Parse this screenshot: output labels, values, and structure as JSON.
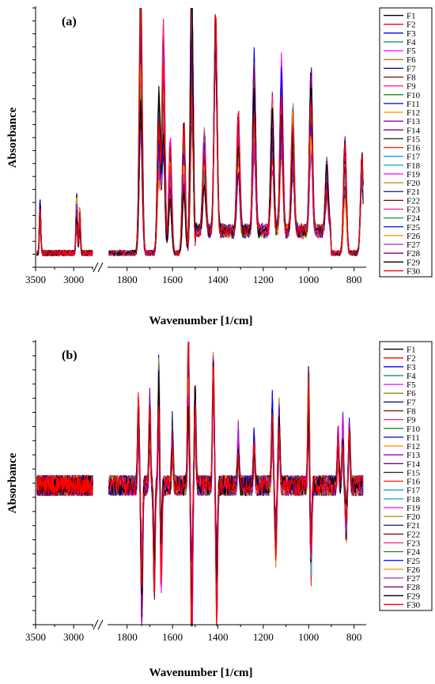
{
  "chart_data": [
    {
      "type": "line",
      "panel_label": "(a)",
      "xlabel": "Wavenumber [1/cm]",
      "ylabel": "Absorbance",
      "xlim": [
        3500,
        750
      ],
      "x_axis_break": [
        2700,
        1900
      ],
      "x_ticks": [
        3500,
        3000,
        1800,
        1600,
        1400,
        1200,
        1000,
        800
      ],
      "y_tick_labels": "none",
      "legend_position": "right",
      "peaks": [
        {
          "x": 3440,
          "h": 0.18
        },
        {
          "x": 2960,
          "h": 0.2
        },
        {
          "x": 2920,
          "h": 0.16
        },
        {
          "x": 1740,
          "h": 0.93
        },
        {
          "x": 1660,
          "h": 0.56
        },
        {
          "x": 1640,
          "h": 0.8
        },
        {
          "x": 1610,
          "h": 0.4
        },
        {
          "x": 1550,
          "h": 0.45
        },
        {
          "x": 1515,
          "h": 0.98
        },
        {
          "x": 1460,
          "h": 0.36
        },
        {
          "x": 1410,
          "h": 0.82
        },
        {
          "x": 1310,
          "h": 0.42
        },
        {
          "x": 1240,
          "h": 0.62
        },
        {
          "x": 1160,
          "h": 0.47
        },
        {
          "x": 1120,
          "h": 0.58
        },
        {
          "x": 1070,
          "h": 0.44
        },
        {
          "x": 990,
          "h": 0.55
        },
        {
          "x": 920,
          "h": 0.25
        },
        {
          "x": 840,
          "h": 0.4
        },
        {
          "x": 765,
          "h": 0.35
        }
      ]
    },
    {
      "type": "line",
      "panel_label": "(b)",
      "xlabel": "Wavenumber [1/cm]",
      "ylabel": "Absorbance",
      "xlim": [
        3500,
        750
      ],
      "x_axis_break": [
        2700,
        1900
      ],
      "x_ticks": [
        3500,
        3000,
        1800,
        1600,
        1400,
        1200,
        1000,
        800
      ],
      "y_tick_labels": "none",
      "legend_position": "right",
      "peaks": [
        {
          "x": 1750,
          "h": 0.6
        },
        {
          "x": 1735,
          "h": -0.95
        },
        {
          "x": 1700,
          "h": 0.55
        },
        {
          "x": 1680,
          "h": -0.7
        },
        {
          "x": 1660,
          "h": 0.8
        },
        {
          "x": 1650,
          "h": -0.65
        },
        {
          "x": 1600,
          "h": 0.4
        },
        {
          "x": 1530,
          "h": 1.0
        },
        {
          "x": 1515,
          "h": -1.05
        },
        {
          "x": 1500,
          "h": 0.6
        },
        {
          "x": 1420,
          "h": 0.85
        },
        {
          "x": 1405,
          "h": -0.85
        },
        {
          "x": 1310,
          "h": 0.35
        },
        {
          "x": 1240,
          "h": 0.3
        },
        {
          "x": 1160,
          "h": 0.55
        },
        {
          "x": 1145,
          "h": -0.5
        },
        {
          "x": 1130,
          "h": 0.5
        },
        {
          "x": 1000,
          "h": 0.8
        },
        {
          "x": 990,
          "h": -0.6
        },
        {
          "x": 870,
          "h": 0.35
        },
        {
          "x": 850,
          "h": 0.45
        },
        {
          "x": 835,
          "h": -0.35
        },
        {
          "x": 820,
          "h": 0.5
        }
      ]
    }
  ],
  "series": [
    {
      "name": "F1",
      "color": "#000000"
    },
    {
      "name": "F2",
      "color": "#ff0000"
    },
    {
      "name": "F3",
      "color": "#0000ff"
    },
    {
      "name": "F4",
      "color": "#008080"
    },
    {
      "name": "F5",
      "color": "#ff00ff"
    },
    {
      "name": "F6",
      "color": "#808000"
    },
    {
      "name": "F7",
      "color": "#000080"
    },
    {
      "name": "F8",
      "color": "#800000"
    },
    {
      "name": "F9",
      "color": "#ff1493"
    },
    {
      "name": "F10",
      "color": "#008000"
    },
    {
      "name": "F11",
      "color": "#0000cd"
    },
    {
      "name": "F12",
      "color": "#ff8c00"
    },
    {
      "name": "F13",
      "color": "#9400d3"
    },
    {
      "name": "F14",
      "color": "#800080"
    },
    {
      "name": "F15",
      "color": "#2f2f2f"
    },
    {
      "name": "F16",
      "color": "#ff2020"
    },
    {
      "name": "F17",
      "color": "#1e90ff"
    },
    {
      "name": "F18",
      "color": "#20b2aa"
    },
    {
      "name": "F19",
      "color": "#ff00ff"
    },
    {
      "name": "F20",
      "color": "#b8860b"
    },
    {
      "name": "F21",
      "color": "#191970"
    },
    {
      "name": "F22",
      "color": "#8b0000"
    },
    {
      "name": "F23",
      "color": "#ff1493"
    },
    {
      "name": "F24",
      "color": "#228b22"
    },
    {
      "name": "F25",
      "color": "#0000ff"
    },
    {
      "name": "F26",
      "color": "#ff8c00"
    },
    {
      "name": "F27",
      "color": "#9932cc"
    },
    {
      "name": "F28",
      "color": "#800080"
    },
    {
      "name": "F29",
      "color": "#000000"
    },
    {
      "name": "F30",
      "color": "#ff0000"
    }
  ]
}
